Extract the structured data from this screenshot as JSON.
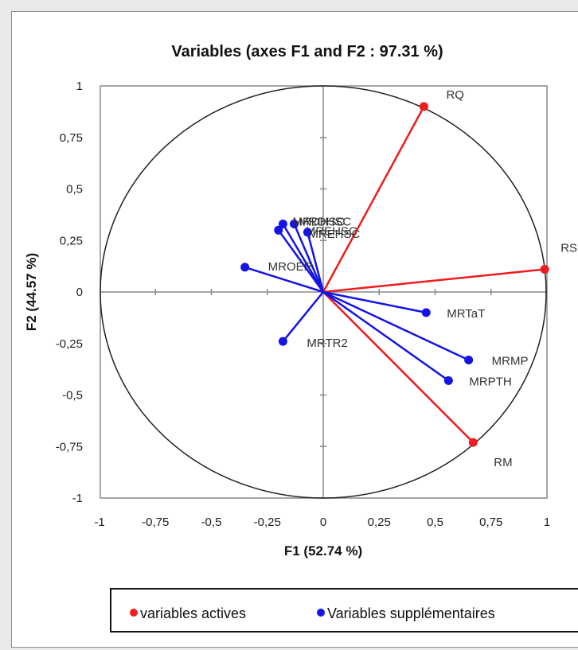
{
  "colors": {
    "active": "#ee1c1c",
    "supplementary": "#1414e6",
    "axis": "#888888",
    "circle": "#222222",
    "border": "#8f8f8f"
  },
  "chart_data": {
    "type": "scatter",
    "title": "Variables (axes F1 and F2 : 97.31 %)",
    "xlabel": "F1 (52.74 %)",
    "ylabel": "F2 (44.57 %)",
    "xlim": [
      -1,
      1
    ],
    "ylim": [
      -1,
      1
    ],
    "x_ticks": [
      "-1",
      "-0,75",
      "-0,5",
      "-0,25",
      "0",
      "0,25",
      "0,5",
      "0,75",
      "1"
    ],
    "y_ticks": [
      "1",
      "0,75",
      "0,5",
      "0,25",
      "0",
      "-0,25",
      "-0,5",
      "-0,75",
      "-1"
    ],
    "grid": false,
    "unit_circle": true,
    "series": [
      {
        "name": "variables actives",
        "color": "#ee1c1c",
        "points": [
          {
            "label": "RQ",
            "x": 0.45,
            "y": 0.9
          },
          {
            "label": "RS",
            "x": 0.99,
            "y": 0.11
          },
          {
            "label": "RM",
            "x": 0.67,
            "y": -0.73
          }
        ]
      },
      {
        "name": "Variables supplémentaires",
        "color": "#1414e6",
        "points": [
          {
            "label": "MRDHSC",
            "x": -0.18,
            "y": 0.33
          },
          {
            "label": "MRDHSC",
            "x": -0.13,
            "y": 0.33
          },
          {
            "label": "MREHSC",
            "x": -0.2,
            "y": 0.3
          },
          {
            "label": "MREHSC",
            "x": -0.07,
            "y": 0.29
          },
          {
            "label": "MROER",
            "x": -0.35,
            "y": 0.12
          },
          {
            "label": "MRTaT",
            "x": 0.46,
            "y": -0.1
          },
          {
            "label": "MRTR2",
            "x": -0.18,
            "y": -0.24
          },
          {
            "label": "MRMP",
            "x": 0.65,
            "y": -0.33
          },
          {
            "label": "MRPTH",
            "x": 0.56,
            "y": -0.43
          }
        ]
      }
    ],
    "legend": {
      "position": "bottom",
      "items": [
        "variables actives",
        "Variables supplémentaires"
      ]
    }
  }
}
